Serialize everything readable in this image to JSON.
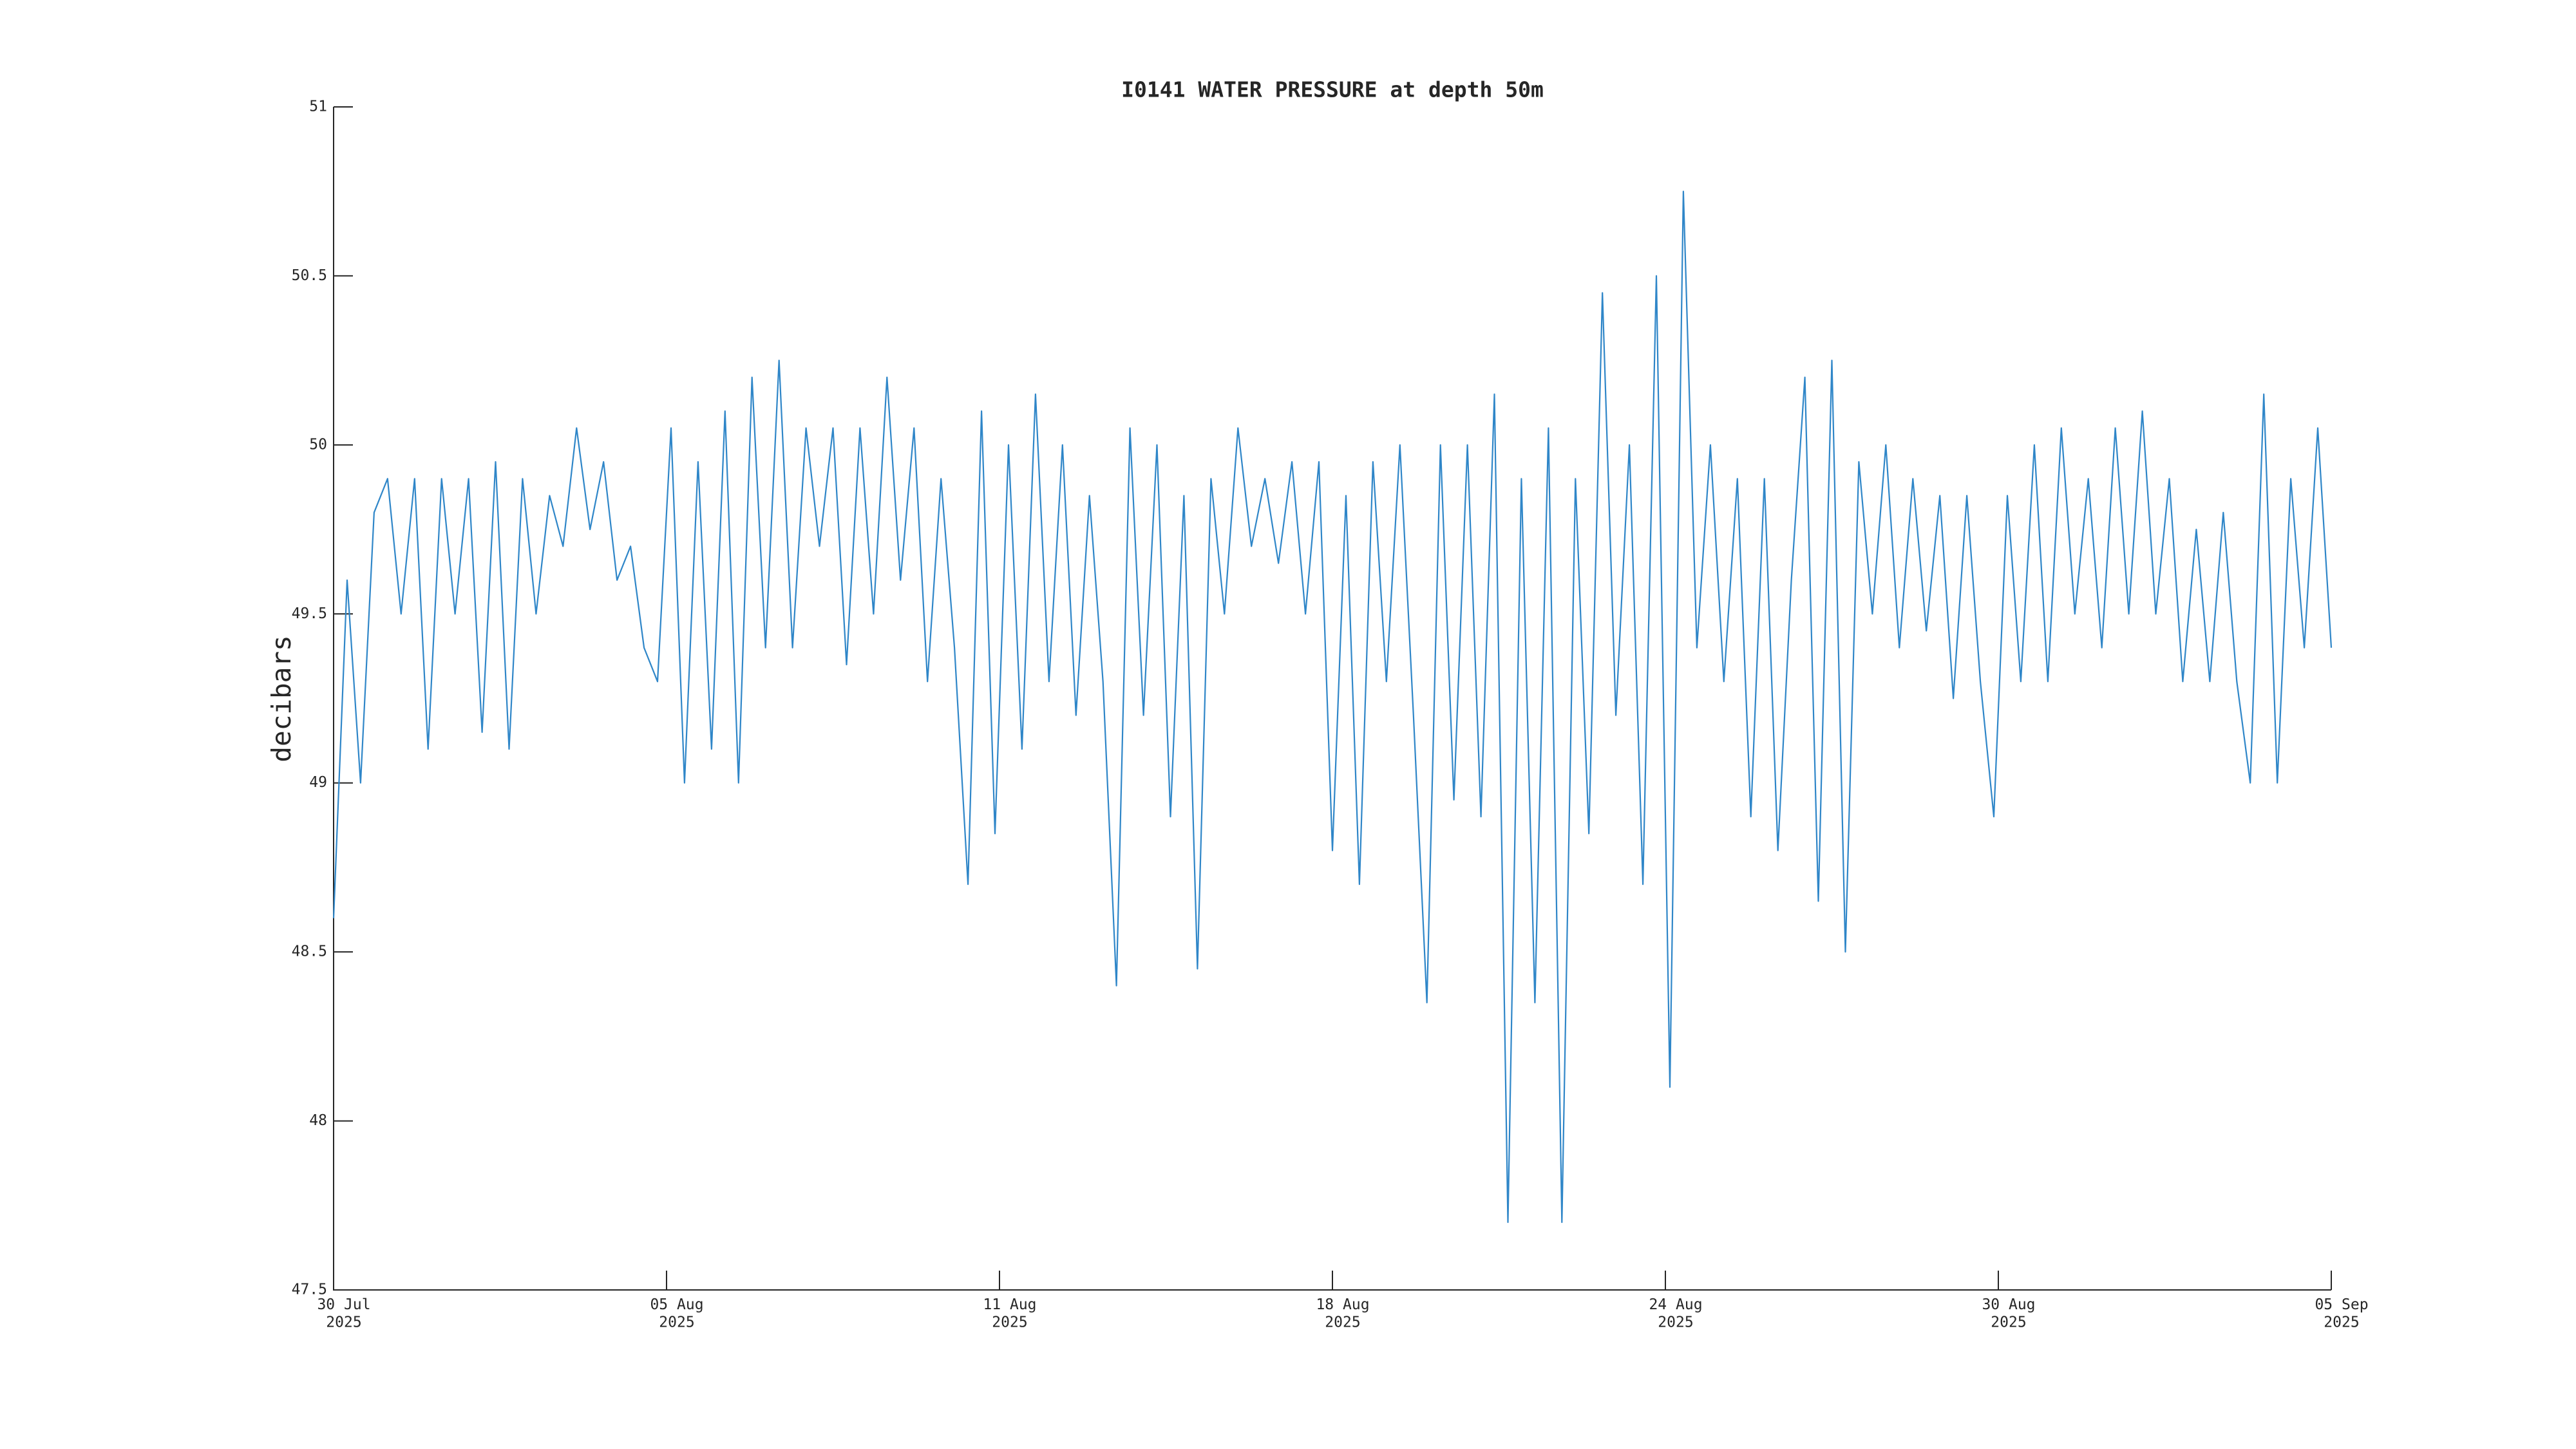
{
  "chart_data": {
    "type": "line",
    "title": "I0141 WATER PRESSURE at depth 50m",
    "ylabel": "decibars",
    "color": "#2f86c8",
    "x": [
      0,
      0.25,
      0.5,
      0.75,
      1,
      1.25,
      1.5,
      1.75,
      2,
      2.25,
      2.5,
      2.75,
      3,
      3.25,
      3.5,
      3.75,
      4,
      4.25,
      4.5,
      4.75,
      5,
      5.25,
      5.5,
      5.75,
      6,
      6.25,
      6.5,
      6.75,
      7,
      7.25,
      7.5,
      7.75,
      8,
      8.25,
      8.5,
      8.75,
      9,
      9.25,
      9.5,
      9.75,
      10,
      10.25,
      10.5,
      10.75,
      11,
      11.25,
      11.5,
      11.75,
      12,
      12.25,
      12.5,
      12.75,
      13,
      13.25,
      13.5,
      13.75,
      14,
      14.25,
      14.5,
      14.75,
      15,
      15.25,
      15.5,
      15.75,
      16,
      16.25,
      16.5,
      16.75,
      17,
      17.25,
      17.5,
      17.75,
      18,
      18.25,
      18.5,
      18.75,
      19,
      19.25,
      19.5,
      19.75,
      20,
      20.25,
      20.5,
      20.75,
      21,
      21.25,
      21.5,
      21.75,
      22,
      22.25,
      22.5,
      22.75,
      23,
      23.25,
      23.5,
      23.75,
      24,
      24.25,
      24.5,
      24.75,
      25,
      25.25,
      25.5,
      25.75,
      26,
      26.25,
      26.5,
      26.75,
      27,
      27.25,
      27.5,
      27.75,
      28,
      28.25,
      28.5,
      28.75,
      29,
      29.25,
      29.5,
      29.75,
      30,
      30.25,
      30.5,
      30.75,
      31,
      31.25,
      31.5,
      31.75,
      32,
      32.25,
      32.5,
      32.75,
      33,
      33.25,
      33.5,
      33.75,
      34,
      34.25,
      34.5,
      34.75,
      35,
      35.25,
      35.5,
      35.75,
      36,
      36.25,
      36.5,
      36.75,
      37
    ],
    "values": [
      48.6,
      49.6,
      49.0,
      49.8,
      49.9,
      49.5,
      49.9,
      49.1,
      49.9,
      49.5,
      49.9,
      49.15,
      49.95,
      49.1,
      49.9,
      49.5,
      49.85,
      49.7,
      50.05,
      49.75,
      49.95,
      49.6,
      49.7,
      49.4,
      49.3,
      50.05,
      49.0,
      49.95,
      49.1,
      50.1,
      49.0,
      50.2,
      49.4,
      50.25,
      49.4,
      50.05,
      49.7,
      50.05,
      49.35,
      50.05,
      49.5,
      50.2,
      49.6,
      50.05,
      49.3,
      49.9,
      49.4,
      48.7,
      50.1,
      48.85,
      50.0,
      49.1,
      50.15,
      49.3,
      50.0,
      49.2,
      49.85,
      49.3,
      48.4,
      50.05,
      49.2,
      50.0,
      48.9,
      49.85,
      48.45,
      49.9,
      49.5,
      50.05,
      49.7,
      49.9,
      49.65,
      49.95,
      49.5,
      49.95,
      48.8,
      49.85,
      48.7,
      49.95,
      49.3,
      50.0,
      49.2,
      48.35,
      50.0,
      48.95,
      50.0,
      48.9,
      50.15,
      47.7,
      49.9,
      48.35,
      50.05,
      47.7,
      49.9,
      48.85,
      50.45,
      49.2,
      50.0,
      48.7,
      50.5,
      48.1,
      50.75,
      49.4,
      50.0,
      49.3,
      49.9,
      48.9,
      49.9,
      48.8,
      49.6,
      50.2,
      48.65,
      50.25,
      48.5,
      49.95,
      49.5,
      50.0,
      49.4,
      49.9,
      49.45,
      49.85,
      49.25,
      49.85,
      49.3,
      48.9,
      49.85,
      49.3,
      50.0,
      49.3,
      50.05,
      49.5,
      49.9,
      49.4,
      50.05,
      49.5,
      50.1,
      49.5,
      49.9,
      49.3,
      49.75,
      49.3,
      49.8,
      49.3,
      49.0,
      50.15,
      49.0,
      49.9,
      49.4,
      50.05,
      49.4
    ],
    "xlim": [
      0,
      37
    ],
    "xticks": [
      {
        "value": 0,
        "label": "30 Jul\n2025"
      },
      {
        "value": 6.1667,
        "label": "05 Aug\n2025"
      },
      {
        "value": 12.3333,
        "label": "11 Aug\n2025"
      },
      {
        "value": 18.5,
        "label": "18 Aug\n2025"
      },
      {
        "value": 24.6667,
        "label": "24 Aug\n2025"
      },
      {
        "value": 30.8333,
        "label": "30 Aug\n2025"
      },
      {
        "value": 37,
        "label": "05 Sep\n2025"
      }
    ],
    "ylim": [
      47.5,
      51
    ],
    "yticks": [
      47.5,
      48,
      48.5,
      49,
      49.5,
      50,
      50.5,
      51
    ],
    "grid": false
  }
}
